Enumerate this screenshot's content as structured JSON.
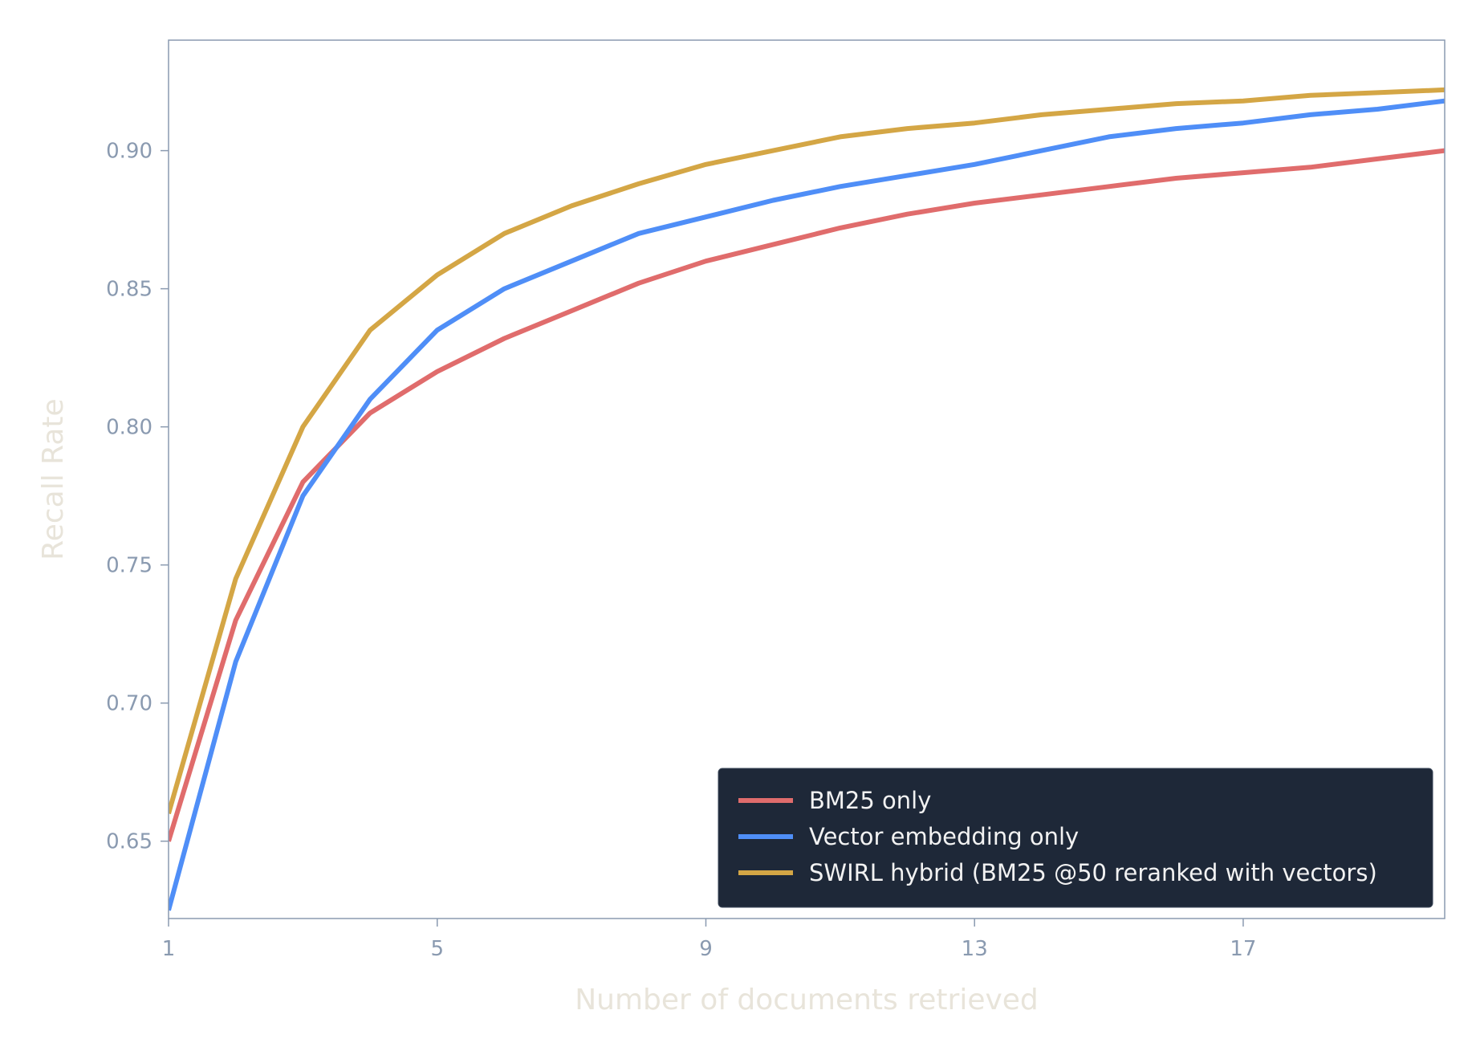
{
  "chart_data": {
    "type": "line",
    "title": "",
    "xlabel": "Number of documents retrieved",
    "ylabel": "Recall Rate",
    "x": [
      1,
      2,
      3,
      4,
      5,
      6,
      7,
      8,
      9,
      10,
      11,
      12,
      13,
      14,
      15,
      16,
      17,
      18,
      19,
      20
    ],
    "xlim": [
      1,
      20
    ],
    "ylim": [
      0.622,
      0.94
    ],
    "xticks": [
      1,
      5,
      9,
      13,
      17
    ],
    "yticks": [
      0.65,
      0.7,
      0.75,
      0.8,
      0.85,
      0.9
    ],
    "ytick_labels": [
      "0.65",
      "0.70",
      "0.75",
      "0.80",
      "0.85",
      "0.90"
    ],
    "grid": false,
    "legend_position": "bottom-right",
    "series": [
      {
        "name": "BM25 only",
        "color": "#e06c6c",
        "values": [
          0.65,
          0.73,
          0.78,
          0.805,
          0.82,
          0.832,
          0.842,
          0.852,
          0.86,
          0.866,
          0.872,
          0.877,
          0.881,
          0.884,
          0.887,
          0.89,
          0.892,
          0.894,
          0.897,
          0.9
        ]
      },
      {
        "name": "Vector embedding only",
        "color": "#4f8ef7",
        "values": [
          0.625,
          0.715,
          0.775,
          0.81,
          0.835,
          0.85,
          0.86,
          0.87,
          0.876,
          0.882,
          0.887,
          0.891,
          0.895,
          0.9,
          0.905,
          0.908,
          0.91,
          0.913,
          0.915,
          0.918
        ]
      },
      {
        "name": "SWIRL hybrid (BM25 @50 reranked with vectors)",
        "color": "#d4a645",
        "values": [
          0.66,
          0.745,
          0.8,
          0.835,
          0.855,
          0.87,
          0.88,
          0.888,
          0.895,
          0.9,
          0.905,
          0.908,
          0.91,
          0.913,
          0.915,
          0.917,
          0.918,
          0.92,
          0.921,
          0.922
        ]
      }
    ],
    "colors": {
      "axes_frame": "#8a9ab0",
      "tick_label": "#8a9ab0",
      "axis_title": "#e8e4da",
      "legend_bg": "#1e2838",
      "legend_text": "#f2f2f2"
    }
  }
}
